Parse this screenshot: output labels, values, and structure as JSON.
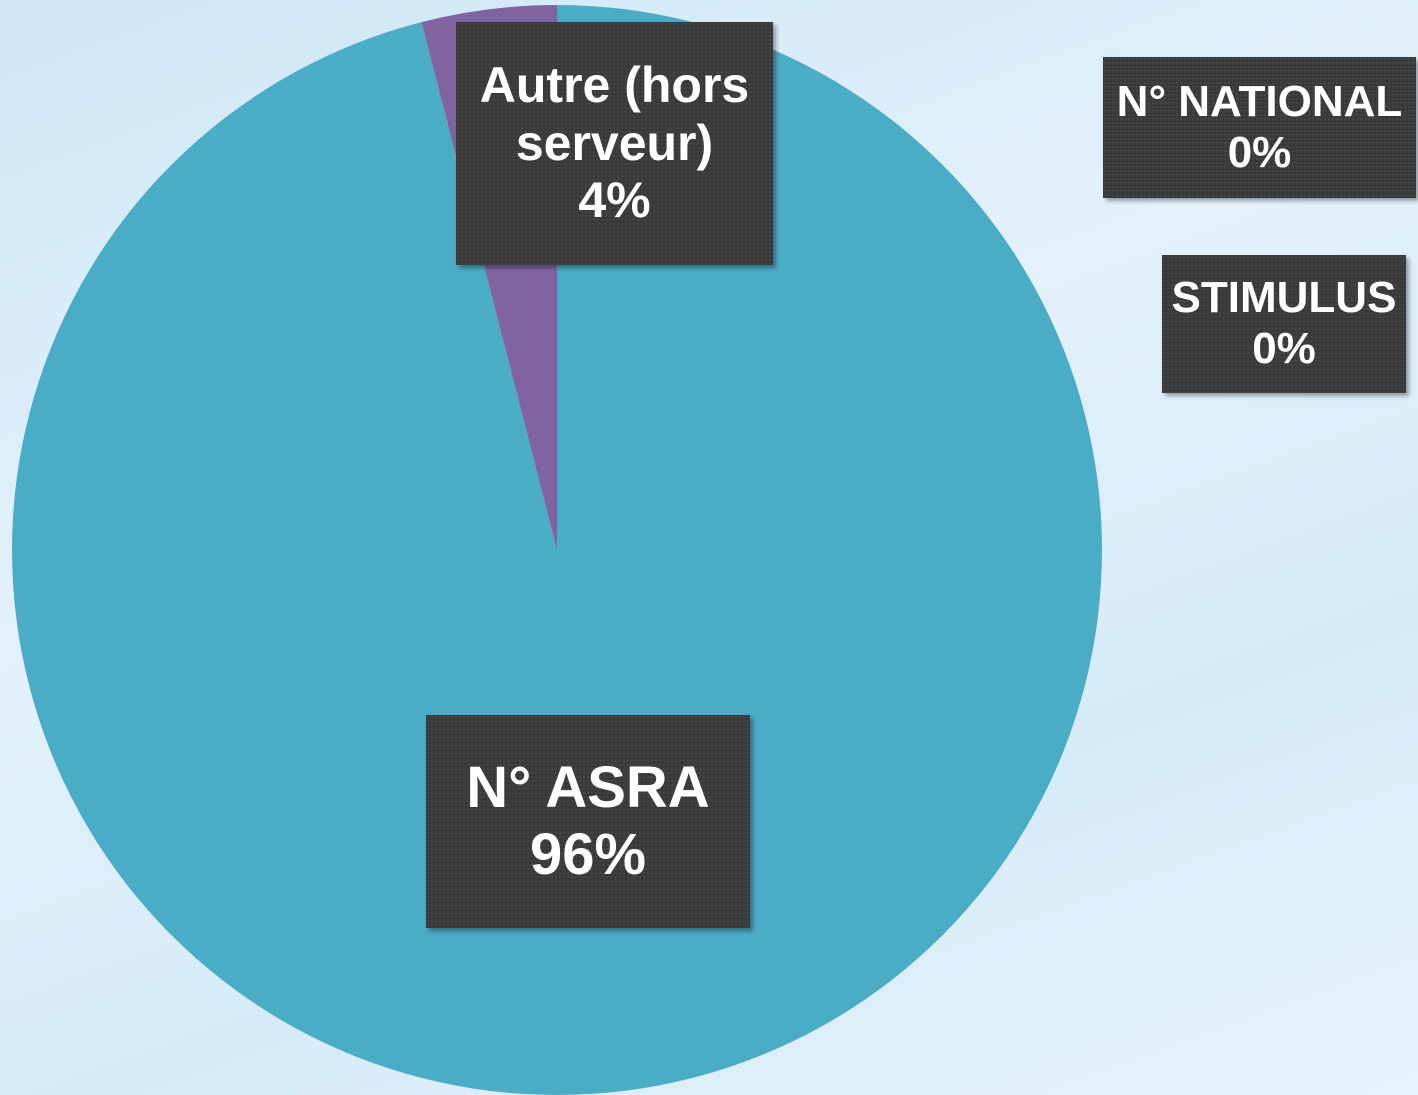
{
  "chart_data": {
    "type": "pie",
    "categories": [
      "N° ASRA",
      "N° NATIONAL",
      "STIMULUS",
      "Autre (hors serveur)"
    ],
    "values": [
      96,
      0,
      0,
      4
    ],
    "value_labels": [
      "96%",
      "0%",
      "0%",
      "4%"
    ],
    "colors": [
      "#4bacc6",
      "#f79646",
      "#9bbb59",
      "#8064a2"
    ]
  }
}
